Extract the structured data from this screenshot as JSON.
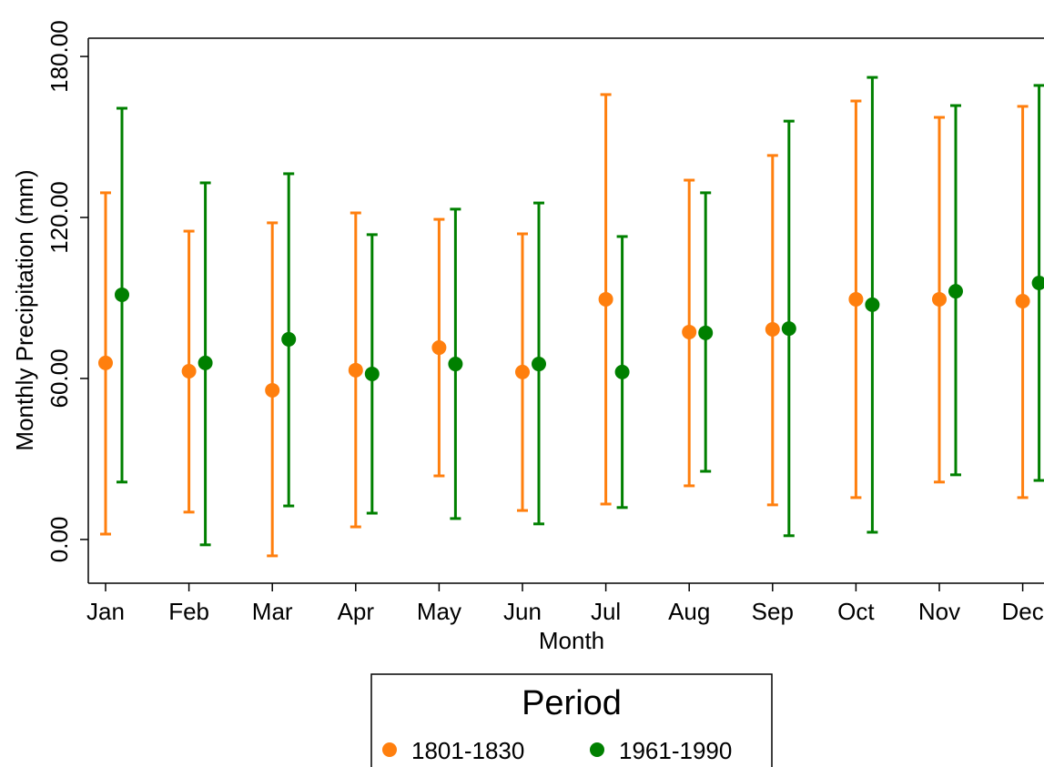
{
  "chart_data": {
    "type": "errorbar",
    "x_label": "Month",
    "y_label": "Monthly Precipitation (mm)",
    "legend_title": "Period",
    "categories": [
      "Jan",
      "Feb",
      "Mar",
      "Apr",
      "May",
      "Jun",
      "Jul",
      "Aug",
      "Sep",
      "Oct",
      "Nov",
      "Dec"
    ],
    "ylim": [
      -16.3,
      186.8
    ],
    "yticks": [
      {
        "value": 0,
        "label": "0.00"
      },
      {
        "value": 60,
        "label": "60.00"
      },
      {
        "value": 120,
        "label": "120.00"
      },
      {
        "value": 180,
        "label": "180.00"
      }
    ],
    "series": [
      {
        "name": "1801-1830",
        "color": "#ff7f0e",
        "values": [
          65.8,
          62.7,
          55.6,
          63.1,
          71.5,
          62.4,
          89.5,
          77.3,
          78.3,
          89.5,
          89.5,
          88.8
        ],
        "low": [
          2.0,
          10.2,
          -6.1,
          4.7,
          23.7,
          10.8,
          13.2,
          20.0,
          12.9,
          15.6,
          21.4,
          15.6
        ],
        "high": [
          129.2,
          114.9,
          118.0,
          121.7,
          119.3,
          113.9,
          165.8,
          133.9,
          143.1,
          163.4,
          157.3,
          161.4
        ]
      },
      {
        "name": "1961-1990",
        "color": "#008000",
        "values": [
          91.2,
          65.8,
          74.6,
          61.7,
          65.4,
          65.4,
          62.4,
          77.0,
          78.6,
          87.5,
          92.5,
          95.6
        ],
        "low": [
          21.4,
          -2.0,
          12.5,
          9.8,
          7.8,
          5.8,
          11.9,
          25.4,
          1.4,
          2.7,
          24.1,
          22.0
        ],
        "high": [
          160.7,
          132.9,
          136.3,
          113.6,
          123.1,
          125.4,
          112.9,
          129.2,
          155.9,
          172.2,
          161.7,
          169.2
        ]
      }
    ]
  }
}
